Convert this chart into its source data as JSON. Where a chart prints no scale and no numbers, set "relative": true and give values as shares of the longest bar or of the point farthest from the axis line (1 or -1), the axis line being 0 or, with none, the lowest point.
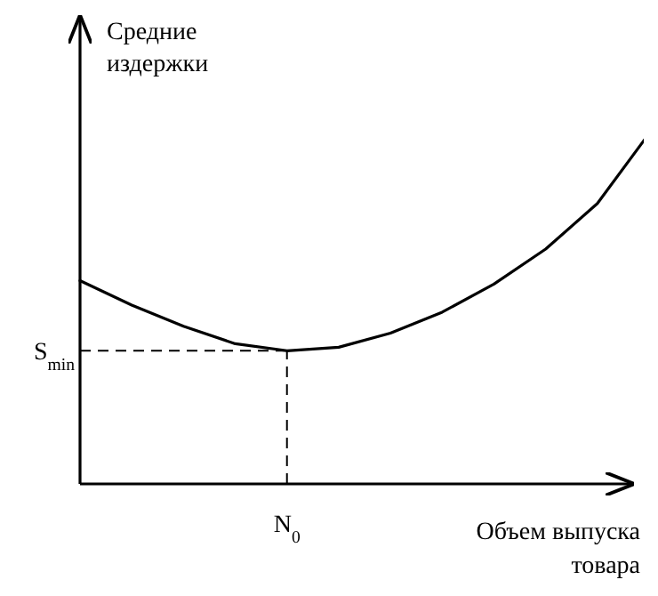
{
  "chart_data": {
    "type": "line",
    "relative": true,
    "ylabel": "Средние издержки",
    "xlabel": "Объем выпуска товара",
    "marker": "none",
    "line_style": "solid",
    "categories": [
      null,
      null,
      null,
      null,
      null,
      null,
      null,
      null,
      null,
      null,
      null,
      null
    ],
    "annotations": [
      "N$_{0}$"
    ],
    "series": [
      {
        "color": "#000000",
        "values": [
          0.58,
          0.51,
          0.45,
          0.4,
          0.38,
          0.39,
          0.43,
          0.49,
          0.57,
          0.67,
          0.8,
          1.0
        ]
      }
    ],
    "ref_lines": [
      {
        "axis": "y",
        "value": 0.38,
        "label": "S$_{min}$",
        "line_style": "dashed"
      }
    ]
  }
}
